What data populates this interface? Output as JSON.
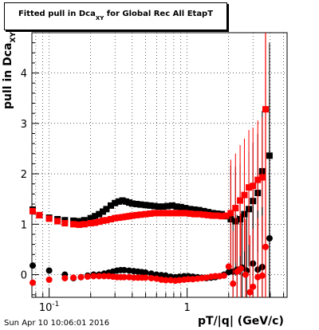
{
  "header": {
    "title_prefix": "Fitted pull in Dca",
    "title_sub": "XY",
    "title_suffix": " for Global Rec All EtapT"
  },
  "footer": {
    "timestamp": "Sun Apr 10 10:06:01 2016"
  },
  "chart_data": {
    "type": "scatter",
    "xscale": "log",
    "xlim": [
      0.075,
      5.3
    ],
    "ylim": [
      -0.45,
      4.8
    ],
    "xlabel": "pT/|q| (GeV/c)",
    "ylabel_prefix": "pull in Dca",
    "ylabel_sub": "XY",
    "x_ticks": [
      {
        "value": 0.1,
        "label": "10",
        "exp": "-1"
      },
      {
        "value": 1,
        "label": "1",
        "exp": ""
      }
    ],
    "y_ticks": [
      0,
      1,
      2,
      3,
      4
    ],
    "grid": true,
    "colors": {
      "black_series": "#000000",
      "red_series": "#ff0000"
    },
    "series": [
      {
        "name": "",
        "marker": "square",
        "color": "#000000",
        "points": [
          [
            0.076,
            1.29
          ],
          [
            0.085,
            1.18
          ],
          [
            0.1,
            1.13
          ],
          [
            0.115,
            1.1
          ],
          [
            0.13,
            1.08
          ],
          [
            0.15,
            1.07
          ],
          [
            0.165,
            1.06
          ],
          [
            0.18,
            1.08
          ],
          [
            0.2,
            1.12
          ],
          [
            0.215,
            1.16
          ],
          [
            0.23,
            1.2
          ],
          [
            0.245,
            1.25
          ],
          [
            0.26,
            1.3
          ],
          [
            0.28,
            1.37
          ],
          [
            0.3,
            1.42
          ],
          [
            0.32,
            1.45
          ],
          [
            0.34,
            1.47
          ],
          [
            0.36,
            1.45
          ],
          [
            0.38,
            1.43
          ],
          [
            0.4,
            1.41
          ],
          [
            0.43,
            1.4
          ],
          [
            0.46,
            1.39
          ],
          [
            0.5,
            1.38
          ],
          [
            0.54,
            1.37
          ],
          [
            0.58,
            1.36
          ],
          [
            0.62,
            1.35
          ],
          [
            0.67,
            1.35
          ],
          [
            0.72,
            1.36
          ],
          [
            0.78,
            1.37
          ],
          [
            0.84,
            1.35
          ],
          [
            0.9,
            1.34
          ],
          [
            0.97,
            1.32
          ],
          [
            1.05,
            1.3
          ],
          [
            1.13,
            1.29
          ],
          [
            1.22,
            1.28
          ],
          [
            1.32,
            1.26
          ],
          [
            1.42,
            1.24
          ],
          [
            1.53,
            1.22
          ],
          [
            1.65,
            1.21
          ],
          [
            1.78,
            1.2
          ],
          [
            1.92,
            1.16
          ],
          [
            2.07,
            1.1
          ],
          [
            2.24,
            1.06
          ],
          [
            2.42,
            1.1
          ],
          [
            2.6,
            1.2
          ],
          [
            2.8,
            1.3
          ],
          [
            3.0,
            1.46
          ],
          [
            3.25,
            1.62
          ],
          [
            3.5,
            2.05
          ],
          [
            3.95,
            2.36
          ]
        ]
      },
      {
        "name": "",
        "marker": "square",
        "color": "#ff0000",
        "points": [
          [
            0.076,
            1.26
          ],
          [
            0.085,
            1.18
          ],
          [
            0.1,
            1.11
          ],
          [
            0.115,
            1.06
          ],
          [
            0.13,
            1.02
          ],
          [
            0.15,
            1.0
          ],
          [
            0.165,
            0.99
          ],
          [
            0.18,
            1.0
          ],
          [
            0.2,
            1.02
          ],
          [
            0.215,
            1.03
          ],
          [
            0.23,
            1.05
          ],
          [
            0.245,
            1.07
          ],
          [
            0.26,
            1.08
          ],
          [
            0.28,
            1.1
          ],
          [
            0.3,
            1.12
          ],
          [
            0.32,
            1.13
          ],
          [
            0.34,
            1.14
          ],
          [
            0.36,
            1.15
          ],
          [
            0.38,
            1.16
          ],
          [
            0.4,
            1.17
          ],
          [
            0.43,
            1.18
          ],
          [
            0.46,
            1.19
          ],
          [
            0.5,
            1.2
          ],
          [
            0.54,
            1.21
          ],
          [
            0.58,
            1.22
          ],
          [
            0.62,
            1.22
          ],
          [
            0.67,
            1.22
          ],
          [
            0.72,
            1.22
          ],
          [
            0.78,
            1.22
          ],
          [
            0.84,
            1.22
          ],
          [
            0.9,
            1.22
          ],
          [
            0.97,
            1.22
          ],
          [
            1.05,
            1.21
          ],
          [
            1.13,
            1.2
          ],
          [
            1.22,
            1.2
          ],
          [
            1.32,
            1.19
          ],
          [
            1.42,
            1.18
          ],
          [
            1.53,
            1.17
          ],
          [
            1.65,
            1.17
          ],
          [
            1.78,
            1.16
          ],
          [
            1.92,
            1.17
          ],
          [
            2.07,
            1.22
          ],
          [
            2.24,
            1.32
          ],
          [
            2.42,
            1.47
          ],
          [
            2.6,
            1.58
          ],
          [
            2.8,
            1.73
          ],
          [
            3.0,
            1.76
          ],
          [
            3.25,
            1.88
          ],
          [
            3.5,
            1.93
          ],
          [
            3.7,
            3.28
          ]
        ]
      },
      {
        "name": "",
        "marker": "circle",
        "color": "#000000",
        "points": [
          [
            0.076,
            0.18
          ],
          [
            0.1,
            0.08
          ],
          [
            0.13,
            0.0
          ],
          [
            0.15,
            -0.07
          ],
          [
            0.17,
            -0.05
          ],
          [
            0.19,
            -0.02
          ],
          [
            0.21,
            0.0
          ],
          [
            0.23,
            0.0
          ],
          [
            0.25,
            0.02
          ],
          [
            0.27,
            0.04
          ],
          [
            0.29,
            0.06
          ],
          [
            0.31,
            0.08
          ],
          [
            0.33,
            0.09
          ],
          [
            0.35,
            0.09
          ],
          [
            0.38,
            0.08
          ],
          [
            0.41,
            0.07
          ],
          [
            0.44,
            0.06
          ],
          [
            0.47,
            0.05
          ],
          [
            0.5,
            0.04
          ],
          [
            0.55,
            0.02
          ],
          [
            0.6,
            0.0
          ],
          [
            0.65,
            -0.01
          ],
          [
            0.7,
            -0.02
          ],
          [
            0.76,
            -0.04
          ],
          [
            0.82,
            -0.05
          ],
          [
            0.88,
            -0.04
          ],
          [
            0.95,
            -0.03
          ],
          [
            1.02,
            -0.03
          ],
          [
            1.1,
            -0.04
          ],
          [
            1.19,
            -0.05
          ],
          [
            1.28,
            -0.06
          ],
          [
            1.38,
            -0.07
          ],
          [
            1.49,
            -0.06
          ],
          [
            1.6,
            -0.05
          ],
          [
            1.72,
            -0.03
          ],
          [
            1.85,
            0.0
          ],
          [
            2.0,
            0.05
          ],
          [
            2.15,
            0.06
          ],
          [
            2.3,
            0.1
          ],
          [
            2.5,
            0.14
          ],
          [
            2.7,
            0.08
          ],
          [
            3.0,
            0.22
          ],
          [
            3.25,
            0.1
          ],
          [
            3.5,
            0.15
          ],
          [
            3.95,
            0.72
          ]
        ]
      },
      {
        "name": "",
        "marker": "circle",
        "color": "#ff0000",
        "points": [
          [
            0.076,
            -0.16
          ],
          [
            0.1,
            -0.1
          ],
          [
            0.13,
            -0.07
          ],
          [
            0.15,
            -0.06
          ],
          [
            0.17,
            -0.05
          ],
          [
            0.19,
            -0.04
          ],
          [
            0.21,
            -0.03
          ],
          [
            0.23,
            -0.03
          ],
          [
            0.25,
            -0.03
          ],
          [
            0.27,
            -0.03
          ],
          [
            0.29,
            -0.04
          ],
          [
            0.31,
            -0.05
          ],
          [
            0.33,
            -0.05
          ],
          [
            0.35,
            -0.05
          ],
          [
            0.38,
            -0.05
          ],
          [
            0.41,
            -0.06
          ],
          [
            0.44,
            -0.06
          ],
          [
            0.47,
            -0.06
          ],
          [
            0.5,
            -0.06
          ],
          [
            0.55,
            -0.07
          ],
          [
            0.6,
            -0.08
          ],
          [
            0.65,
            -0.1
          ],
          [
            0.7,
            -0.11
          ],
          [
            0.76,
            -0.11
          ],
          [
            0.82,
            -0.12
          ],
          [
            0.88,
            -0.11
          ],
          [
            0.95,
            -0.1
          ],
          [
            1.02,
            -0.09
          ],
          [
            1.1,
            -0.09
          ],
          [
            1.19,
            -0.08
          ],
          [
            1.28,
            -0.07
          ],
          [
            1.38,
            -0.06
          ],
          [
            1.49,
            -0.04
          ],
          [
            1.6,
            -0.03
          ],
          [
            1.72,
            -0.03
          ],
          [
            1.85,
            -0.02
          ],
          [
            2.0,
            0.16
          ],
          [
            2.15,
            -0.18
          ],
          [
            2.3,
            0.06
          ],
          [
            2.45,
            0.12
          ],
          [
            2.65,
            0.0
          ],
          [
            2.85,
            -0.35
          ],
          [
            3.0,
            -0.24
          ],
          [
            3.25,
            -0.05
          ],
          [
            3.5,
            -0.02
          ],
          [
            3.7,
            0.55
          ]
        ]
      }
    ]
  }
}
